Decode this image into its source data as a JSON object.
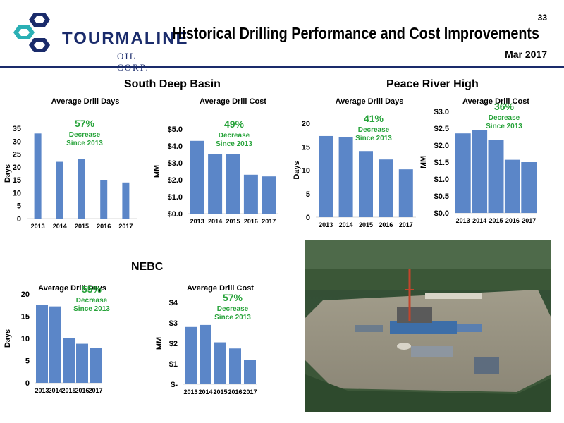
{
  "header": {
    "logo_text": "TOURMALINE",
    "logo_sub": "OIL CORP.",
    "title": "Historical Drilling Performance and Cost Improvements",
    "date": "Mar 2017",
    "page_number": "33"
  },
  "sections": {
    "south_deep_basin": "South Deep Basin",
    "peace_river_high": "Peace River High",
    "nebc": "NEBC"
  },
  "colors": {
    "bar": "#5b86c8",
    "accent_green": "#27a33a",
    "brand_navy": "#1a2b6b",
    "logo_teal": "#2bb0b5"
  },
  "chart_data": [
    {
      "id": "sdb-days",
      "type": "bar",
      "region": "South Deep Basin",
      "title": "Average Drill Days",
      "ylabel": "Days",
      "categories": [
        "2013",
        "2014",
        "2015",
        "2016",
        "2017"
      ],
      "values": [
        33,
        22,
        23,
        15,
        14
      ],
      "ylim": [
        0,
        35
      ],
      "yticks": [
        "0",
        "5",
        "10",
        "15",
        "20",
        "25",
        "30",
        "35"
      ],
      "annotation": {
        "pct": "57%",
        "line1": "Decrease",
        "line2": "Since 2013"
      }
    },
    {
      "id": "sdb-cost",
      "type": "bar",
      "region": "South Deep Basin",
      "title": "Average Drill Cost",
      "ylabel": "MM",
      "categories": [
        "2013",
        "2014",
        "2015",
        "2016",
        "2017"
      ],
      "values": [
        4.3,
        3.5,
        3.5,
        2.3,
        2.2
      ],
      "ylim": [
        0,
        5
      ],
      "yticks": [
        "$0.0",
        "$1.0",
        "$2.0",
        "$3.0",
        "$4.0",
        "$5.0"
      ],
      "annotation": {
        "pct": "49%",
        "line1": "Decrease",
        "line2": "Since 2013"
      }
    },
    {
      "id": "prh-days",
      "type": "bar",
      "region": "Peace River High",
      "title": "Average Drill Days",
      "ylabel": "Days",
      "categories": [
        "2013",
        "2014",
        "2015",
        "2016",
        "2017"
      ],
      "values": [
        17.3,
        17.1,
        14.1,
        12.3,
        10.2
      ],
      "ylim": [
        0,
        20
      ],
      "yticks": [
        "0",
        "5",
        "10",
        "15",
        "20"
      ],
      "annotation": {
        "pct": "41%",
        "line1": "Decrease",
        "line2": "Since 2013"
      }
    },
    {
      "id": "prh-cost",
      "type": "bar",
      "region": "Peace River High",
      "title": "Average Drill Cost",
      "ylabel": "MM",
      "categories": [
        "2013",
        "2014",
        "2015",
        "2016",
        "2017"
      ],
      "values": [
        2.35,
        2.45,
        2.15,
        1.57,
        1.5
      ],
      "ylim": [
        0,
        3
      ],
      "yticks": [
        "$0.0",
        "$0.5",
        "$1.0",
        "$1.5",
        "$2.0",
        "$2.5",
        "$3.0"
      ],
      "annotation": {
        "pct": "36%",
        "line1": "Decrease",
        "line2": "Since 2013"
      }
    },
    {
      "id": "nebc-days",
      "type": "bar",
      "region": "NEBC",
      "title": "Average Drill Days",
      "ylabel": "Days",
      "categories": [
        "2013",
        "2014",
        "2015",
        "2016",
        "2017"
      ],
      "values": [
        17.5,
        17.2,
        10,
        8.8,
        7.9
      ],
      "ylim": [
        0,
        20
      ],
      "yticks": [
        "0",
        "5",
        "10",
        "15",
        "20"
      ],
      "annotation": {
        "pct": "55%",
        "line1": "Decrease",
        "line2": "Since 2013"
      }
    },
    {
      "id": "nebc-cost",
      "type": "bar",
      "region": "NEBC",
      "title": "Average Drill Cost",
      "ylabel": "MM",
      "categories": [
        "2013",
        "2014",
        "2015",
        "2016",
        "2017"
      ],
      "values": [
        2.8,
        2.9,
        2.05,
        1.75,
        1.2
      ],
      "ylim": [
        0,
        4
      ],
      "yticks": [
        "$-",
        "$1",
        "$2",
        "$3",
        "$4"
      ],
      "annotation": {
        "pct": "57%",
        "line1": "Decrease",
        "line2": "Since 2013"
      }
    }
  ]
}
